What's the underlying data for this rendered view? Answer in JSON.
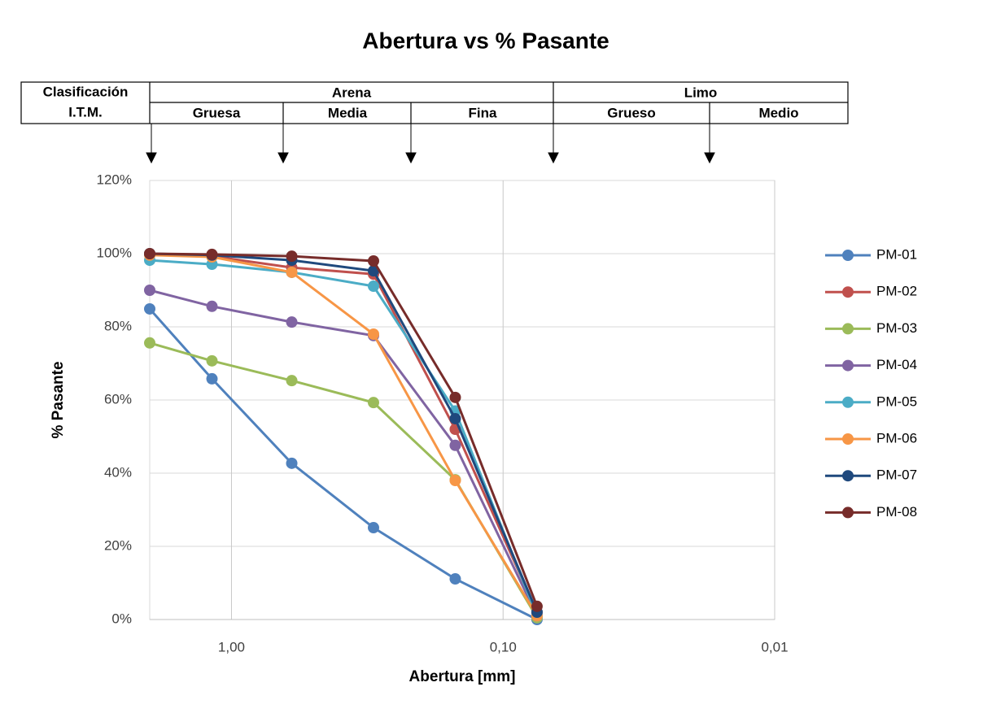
{
  "classification": {
    "label": [
      "Clasificación",
      "I.T.M."
    ],
    "groups": [
      {
        "name": "Arena",
        "subs": [
          "Gruesa",
          "Media",
          "Fina"
        ]
      },
      {
        "name": "Limo",
        "subs": [
          "Grueso",
          "Medio"
        ]
      }
    ]
  },
  "chart_data": {
    "type": "line",
    "title": "Abertura vs % Pasante",
    "x_label": "Abertura [mm]",
    "y_label": "% Pasante",
    "x": [
      2,
      1.18,
      0.6,
      0.3,
      0.15,
      0.075
    ],
    "xlim": [
      2,
      0.01
    ],
    "x_log": true,
    "xticks": [
      {
        "value": 1,
        "label": "1,00"
      },
      {
        "value": 0.1,
        "label": "0,10"
      },
      {
        "value": 0.01,
        "label": "0,01"
      }
    ],
    "ylim": [
      0,
      120
    ],
    "yticks": [
      {
        "value": 0,
        "label": "0%"
      },
      {
        "value": 20,
        "label": "20%"
      },
      {
        "value": 40,
        "label": "40%"
      },
      {
        "value": 60,
        "label": "60%"
      },
      {
        "value": 80,
        "label": "80%"
      },
      {
        "value": 100,
        "label": "100%"
      },
      {
        "value": 120,
        "label": "120%"
      }
    ],
    "grid": true,
    "legend": "right",
    "series": [
      {
        "name": "PM-01",
        "color": "#4f81bd",
        "values": [
          84.9,
          65.8,
          42.7,
          25.1,
          11.1,
          0
        ]
      },
      {
        "name": "PM-02",
        "color": "#c0504d",
        "values": [
          99.8,
          99.3,
          96.2,
          94.4,
          52,
          2
        ]
      },
      {
        "name": "PM-03",
        "color": "#9bbb59",
        "values": [
          75.6,
          70.7,
          65.3,
          59.3,
          38.2,
          0.5
        ]
      },
      {
        "name": "PM-04",
        "color": "#8064a2",
        "values": [
          90,
          85.6,
          81.3,
          77.6,
          47.6,
          1
        ]
      },
      {
        "name": "PM-05",
        "color": "#4bacc6",
        "values": [
          98.2,
          97.1,
          94.9,
          91.1,
          57,
          1
        ]
      },
      {
        "name": "PM-06",
        "color": "#f79646",
        "values": [
          99.6,
          99.1,
          94.9,
          78,
          38,
          1
        ]
      },
      {
        "name": "PM-07",
        "color": "#1f497d",
        "values": [
          100,
          99.6,
          98.2,
          95.3,
          54.9,
          2
        ]
      },
      {
        "name": "PM-08",
        "color": "#772c2a",
        "values": [
          100,
          99.8,
          99.3,
          98,
          60.7,
          3.6
        ]
      }
    ]
  }
}
